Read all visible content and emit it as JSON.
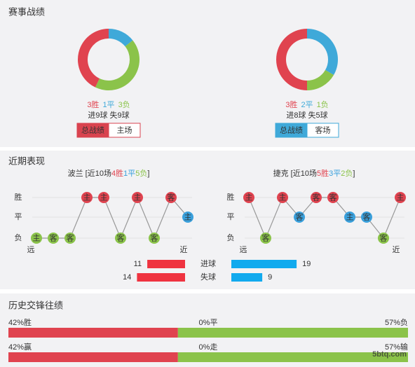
{
  "sections": {
    "record": "赛事战绩",
    "recent": "近期表现",
    "history": "历史交锋往绩"
  },
  "teams": [
    {
      "donut": {
        "values": [
          3,
          1,
          3
        ],
        "value_labels": [
          "3胜",
          "1平",
          "3负"
        ],
        "colors": [
          "#e0434f",
          "#3fa9d9",
          "#8bc34a"
        ]
      },
      "goals": "进9球 失9球",
      "tabs": [
        "总战绩",
        "主场"
      ],
      "tab_color": "#d9434f",
      "name": "波兰",
      "prefix": " [近10场",
      "record": [
        "4胜",
        "1平",
        "5负"
      ],
      "suffix": "]",
      "matches": [
        {
          "venue": "主",
          "result": "负"
        },
        {
          "venue": "客",
          "result": "负"
        },
        {
          "venue": "客",
          "result": "负"
        },
        {
          "venue": "主",
          "result": "胜"
        },
        {
          "venue": "主",
          "result": "胜"
        },
        {
          "venue": "客",
          "result": "负"
        },
        {
          "venue": "主",
          "result": "胜"
        },
        {
          "venue": "客",
          "result": "负"
        },
        {
          "venue": "客",
          "result": "胜"
        },
        {
          "venue": "主",
          "result": "平"
        }
      ]
    },
    {
      "donut": {
        "values": [
          3,
          2,
          1
        ],
        "value_labels": [
          "3胜",
          "2平",
          "1负"
        ],
        "colors": [
          "#e0434f",
          "#3fa9d9",
          "#8bc34a"
        ]
      },
      "goals": "进8球 失5球",
      "tabs": [
        "总战绩",
        "客场"
      ],
      "tab_color": "#3fa9d9",
      "name": "捷克",
      "prefix": " [近10场",
      "record": [
        "5胜",
        "3平",
        "2负"
      ],
      "suffix": "]",
      "matches": [
        {
          "venue": "主",
          "result": "胜"
        },
        {
          "venue": "客",
          "result": "负"
        },
        {
          "venue": "主",
          "result": "胜"
        },
        {
          "venue": "客",
          "result": "平"
        },
        {
          "venue": "客",
          "result": "胜"
        },
        {
          "venue": "客",
          "result": "胜"
        },
        {
          "venue": "主",
          "result": "平"
        },
        {
          "venue": "客",
          "result": "平"
        },
        {
          "venue": "客",
          "result": "负"
        },
        {
          "venue": "主",
          "result": "胜"
        }
      ]
    }
  ],
  "rows": [
    "胜",
    "平",
    "负"
  ],
  "row_colors": [
    "#e0434f",
    "#3aa0dc",
    "#8bc34a"
  ],
  "far": "远",
  "near": "近",
  "goal_bars": [
    {
      "label": "进球",
      "home": 11,
      "away": 19
    },
    {
      "label": "失球",
      "home": 14,
      "away": 9
    }
  ],
  "history": [
    {
      "values": [
        42,
        0,
        57
      ],
      "value_labels": [
        "42%胜",
        "0%平",
        "57%负"
      ]
    },
    {
      "values": [
        42,
        0,
        57
      ],
      "value_labels": [
        "42%赢",
        "0%走",
        "57%输"
      ]
    }
  ],
  "watermark": "5btq.com"
}
